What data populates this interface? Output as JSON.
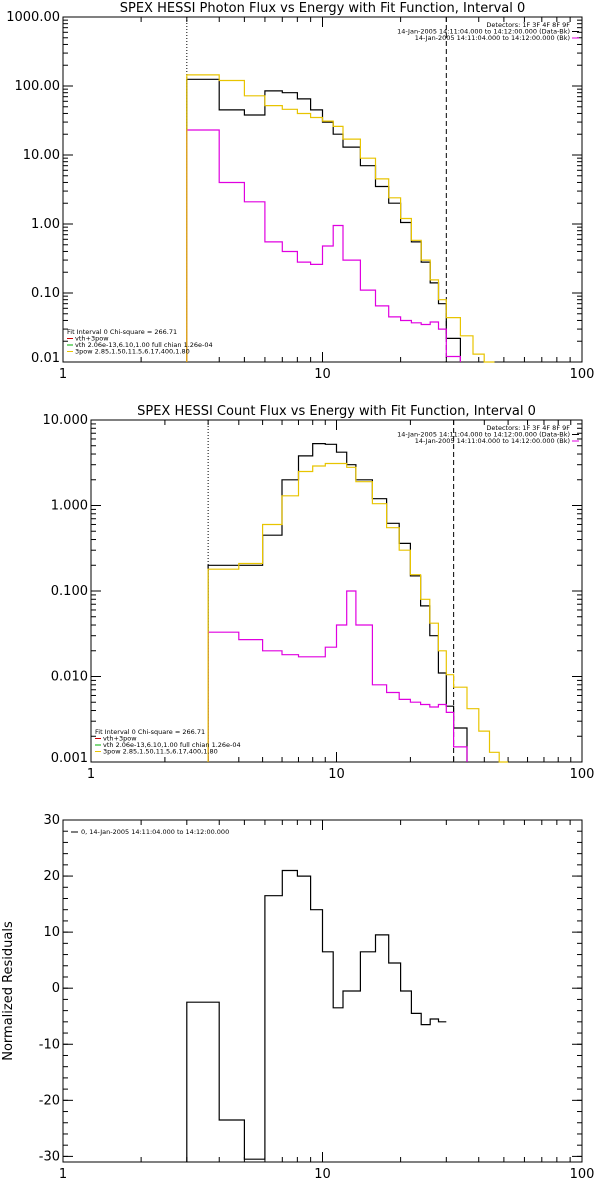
{
  "chart_data": [
    {
      "type": "line",
      "title": "SPEX HESSI Photon Flux vs Energy with Fit Function, Interval 0",
      "xscale": "log",
      "yscale": "log",
      "xlim": [
        1,
        100
      ],
      "ylim": [
        0.01,
        1000
      ],
      "xticks": [
        1,
        10,
        100
      ],
      "xtick_labels": [
        "1",
        "10",
        "100"
      ],
      "yticks": [
        0.01,
        0.1,
        1,
        10,
        100,
        1000
      ],
      "ytick_labels": [
        "0.01",
        "0.10",
        "1.00",
        "10.00",
        "100.00",
        "1000.00"
      ],
      "vlines": [
        {
          "x": 3,
          "style": "dotted"
        },
        {
          "x": 30,
          "style": "dashed"
        }
      ],
      "legend_tr": [
        "Detectors: 1F 3F 4F 8F 9F",
        "14-Jan-2005 14:11:04.000 to 14:12:00.000 (Data-Bk)",
        "14-Jan-2005 14:11:04.000 to 14:12:00.000 (Bk)"
      ],
      "legend_bl": [
        "Fit Interval 0   Chi-square = 266.71",
        "vth+3pow",
        "vth 2.06e-13,6.10,1.00   full chian 1.26e-04",
        "3pow 2.85,1.50,11.5,6.17,400,1.80"
      ],
      "edges": [
        3,
        4,
        5,
        6,
        7,
        8,
        9,
        10,
        11,
        12,
        14,
        16,
        18,
        20,
        22,
        24,
        26,
        28,
        30,
        34,
        38,
        42,
        46,
        50
      ],
      "series": [
        {
          "name": "Data-Bk",
          "color": "#000000",
          "values": [
            125,
            45,
            38,
            85,
            80,
            65,
            45,
            30,
            20,
            13,
            7,
            3.5,
            2,
            1.05,
            0.55,
            0.28,
            0.14,
            0.07,
            0.022
          ]
        },
        {
          "name": "Bk",
          "color": "#e000e0",
          "values": [
            23,
            4,
            2.1,
            0.55,
            0.4,
            0.28,
            0.26,
            0.48,
            0.95,
            0.3,
            0.11,
            0.065,
            0.045,
            0.04,
            0.037,
            0.035,
            0.038,
            0.03,
            0.012
          ]
        },
        {
          "name": "vth+3pow",
          "color": "#e8c400",
          "values": [
            145,
            120,
            72,
            52,
            46,
            40,
            35,
            31,
            26,
            17,
            9,
            4.5,
            2.4,
            1.2,
            0.58,
            0.3,
            0.155,
            0.08,
            0.044,
            0.024,
            0.013,
            0.01
          ]
        }
      ]
    },
    {
      "type": "line",
      "title": "SPEX HESSI Count Flux vs Energy with Fit Function, Interval 0",
      "xscale": "log",
      "yscale": "log",
      "xlim": [
        1,
        100
      ],
      "ylim": [
        0.001,
        10
      ],
      "xticks": [
        1,
        10,
        100
      ],
      "xtick_labels": [
        "1",
        "10",
        "100"
      ],
      "yticks": [
        0.001,
        0.01,
        0.1,
        1,
        10
      ],
      "ytick_labels": [
        "0.001",
        "0.010",
        "0.100",
        "1.000",
        "10.000"
      ],
      "vlines": [
        {
          "x": 3,
          "style": "dotted"
        },
        {
          "x": 30,
          "style": "dashed"
        }
      ],
      "legend_tr": [
        "Detectors: 1F 3F 4F 8F 9F",
        "14-Jan-2005 14:11:04.000 to 14:12:00.000 (Data-Bk)",
        "14-Jan-2005 14:11:04.000 to 14:12:00.000 (Bk)"
      ],
      "legend_bl": [
        "Fit Interval 0   Chi-square = 266.71",
        "vth+3pow",
        "vth 2.06e-13,6.10,1.00   full chian 1.26e-04",
        "3pow 2.85,1.50,11.5,6.17,400,1.80"
      ],
      "edges": [
        3,
        4,
        5,
        6,
        7,
        8,
        9,
        10,
        11,
        12,
        14,
        16,
        18,
        20,
        22,
        24,
        26,
        28,
        30,
        34,
        38,
        42,
        46,
        50
      ],
      "series": [
        {
          "name": "Data-Bk",
          "color": "#000000",
          "values": [
            0.2,
            0.2,
            0.45,
            2.0,
            3.8,
            5.3,
            5.2,
            4.2,
            3.0,
            2.0,
            1.2,
            0.62,
            0.36,
            0.15,
            0.067,
            0.03,
            0.011,
            0.0045,
            0.0025
          ]
        },
        {
          "name": "Bk",
          "color": "#e000e0",
          "values": [
            0.033,
            0.027,
            0.02,
            0.018,
            0.017,
            0.017,
            0.022,
            0.04,
            0.1,
            0.04,
            0.008,
            0.0065,
            0.0054,
            0.005,
            0.0047,
            0.0044,
            0.0047,
            0.0038,
            0.0015
          ]
        },
        {
          "name": "vth+3pow",
          "color": "#e8c400",
          "values": [
            0.18,
            0.21,
            0.6,
            1.3,
            2.5,
            2.9,
            3.1,
            3.1,
            2.8,
            1.9,
            1.05,
            0.55,
            0.3,
            0.155,
            0.08,
            0.042,
            0.02,
            0.0105,
            0.0075,
            0.0042,
            0.0023,
            0.0013,
            0.00075
          ]
        }
      ]
    },
    {
      "type": "line",
      "title": "",
      "xscale": "log",
      "yscale": "linear",
      "xlim": [
        1,
        100
      ],
      "ylim": [
        -31,
        30
      ],
      "xticks": [
        1,
        10,
        100
      ],
      "xtick_labels": [
        "1",
        "10",
        "100"
      ],
      "yticks": [
        -30,
        -20,
        -10,
        0,
        10,
        20,
        30
      ],
      "ytick_labels": [
        "-30",
        "-20",
        "-10",
        "0",
        "10",
        "20",
        "30"
      ],
      "ylabel": "Normalized Residuals",
      "legend_tl": [
        "0, 14-Jan-2005 14:11:04.000 to 14:12:00.000"
      ],
      "edges": [
        3,
        4,
        5,
        6,
        7,
        8,
        9,
        10,
        11,
        12,
        14,
        16,
        18,
        20,
        22,
        24,
        26,
        28,
        30
      ],
      "series": [
        {
          "name": "0, 14-Jan-2005 14:11:04.000 to 14:12:00.000",
          "color": "#000000",
          "values": [
            -2.5,
            -23.5,
            -30.5,
            16.5,
            21,
            20,
            14,
            6.5,
            -3.5,
            -0.5,
            6.5,
            9.5,
            4.5,
            -0.5,
            -4.5,
            -6.5,
            -5.5,
            -6,
            -6
          ]
        }
      ]
    }
  ]
}
